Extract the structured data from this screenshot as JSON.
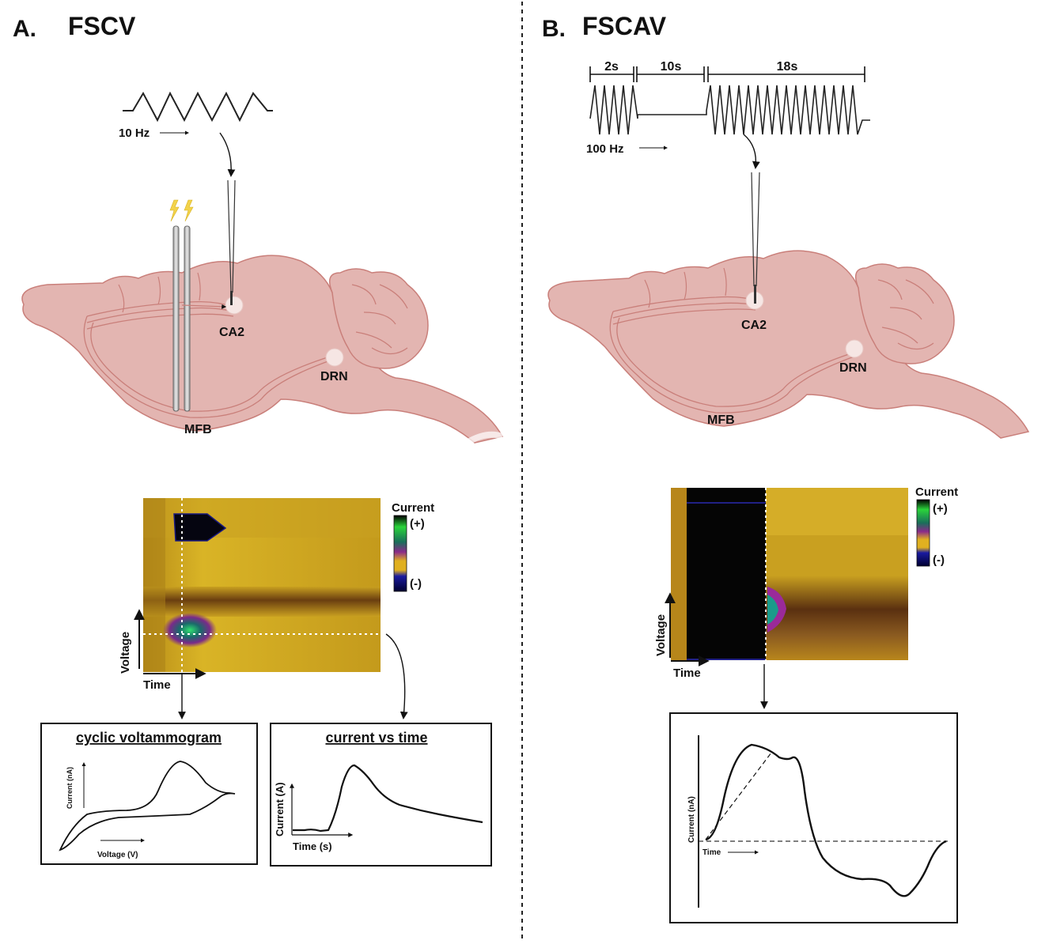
{
  "panel_a": {
    "letter": "A.",
    "title": "FSCV",
    "frequency": "10 Hz",
    "regions": {
      "ca2": "CA2",
      "drn": "DRN",
      "mfb": "MFB"
    },
    "colorplot": {
      "legend_title": "Current",
      "legend_plus": "(+)",
      "legend_minus": "(-)",
      "y_label": "Voltage",
      "x_label": "Time"
    },
    "cv_box": {
      "title": "cyclic voltammogram",
      "y_label": "Current (nA)",
      "x_label": "Voltage (V)"
    },
    "it_box": {
      "title": "current vs time",
      "y_label": "Current (A)",
      "x_label": "Time (s)"
    }
  },
  "panel_b": {
    "letter": "B.",
    "title": "FSCAV",
    "segments": [
      "2s",
      "10s",
      "18s"
    ],
    "frequency": "100 Hz",
    "regions": {
      "ca2": "CA2",
      "drn": "DRN",
      "mfb": "MFB"
    },
    "colorplot": {
      "legend_title": "Current",
      "legend_plus": "(+)",
      "legend_minus": "(-)",
      "y_label": "Voltage",
      "x_label": "Time"
    },
    "trace_box": {
      "y_label": "Current (nA)",
      "x_label": "Time"
    }
  },
  "colors": {
    "brain_fill": "#e3b5b1",
    "brain_stroke": "#c97f7a",
    "plot_gold": "#c9a020",
    "plot_brown": "#7a4a14",
    "plot_black": "#050505"
  }
}
